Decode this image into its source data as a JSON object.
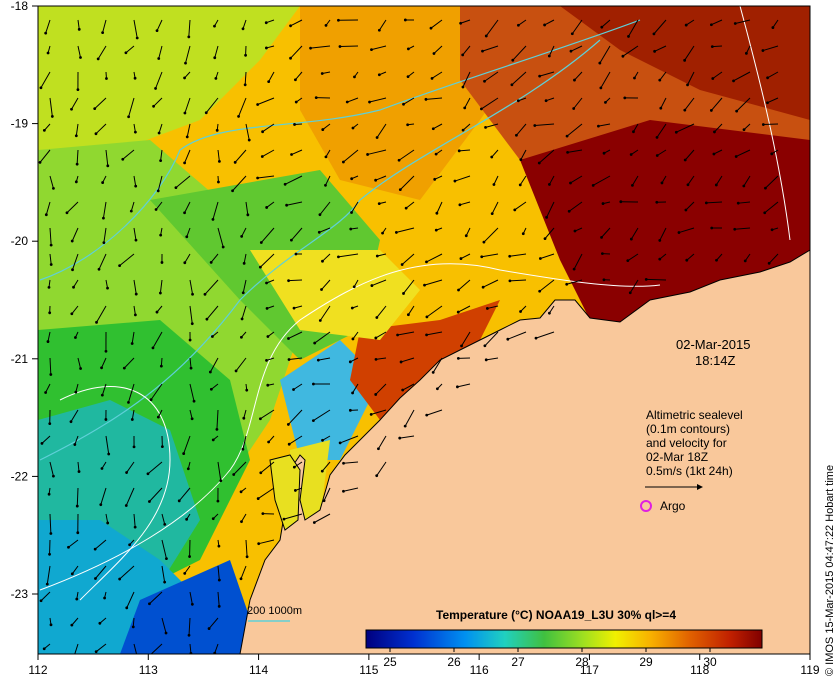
{
  "map": {
    "lon_ticks": [
      "112",
      "113",
      "114",
      "115",
      "116",
      "117",
      "118",
      "119"
    ],
    "lat_ticks": [
      "-18",
      "-19",
      "-20",
      "-21",
      "-22",
      "-23"
    ]
  },
  "annotations": {
    "date": "02-Mar-2015",
    "time": "18:14Z",
    "altimetry_lines": [
      "Altimetric sealevel",
      "(0.1m contours)",
      "and velocity for",
      "02-Mar 18Z",
      "0.5m/s (1kt 24h)"
    ],
    "argo_label": "Argo"
  },
  "legend": {
    "title": "Temperature (°C) NOAA19_L3U 30% ql>=4",
    "ticks": [
      "25",
      "26",
      "27",
      "28",
      "29",
      "30"
    ],
    "bathymetry_label": "200  1000m"
  },
  "credit": "© IMOS 15-Mar-2015 04:47:22 Hobart time",
  "colors": {
    "land": "#f9c89b",
    "bathy_line": "#5fd0d8",
    "argo_marker": "#e020e0"
  }
}
